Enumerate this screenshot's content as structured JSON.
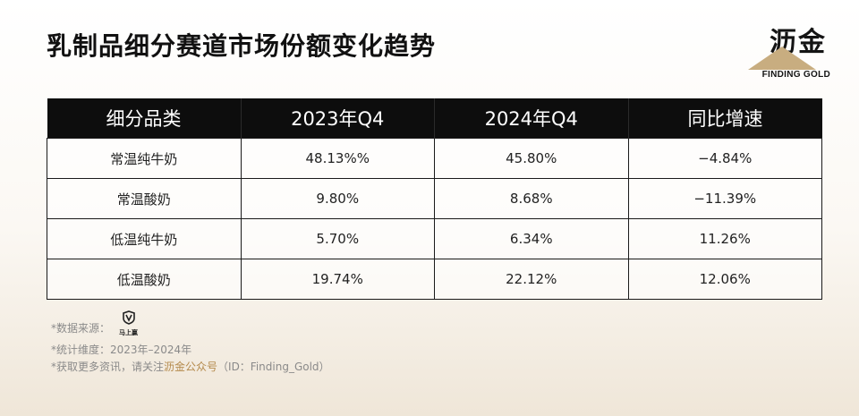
{
  "title": "乳制品细分赛道市场份额变化趋势",
  "logo": {
    "cn": "沥金",
    "en": "FINDING GOLD",
    "accent_color": "#c8ad80"
  },
  "chart_data": {
    "type": "table",
    "columns": [
      "细分品类",
      "2023年Q4",
      "2024年Q4",
      "同比增速"
    ],
    "rows": [
      [
        "常温纯牛奶",
        "48.13%%",
        "45.80%",
        "−4.84%"
      ],
      [
        "常温酸奶",
        "9.80%",
        "8.68%",
        "−11.39%"
      ],
      [
        "低温纯牛奶",
        "5.70%",
        "6.34%",
        "11.26%"
      ],
      [
        "低温酸奶",
        "19.74%",
        "22.12%",
        "12.06%"
      ]
    ]
  },
  "footnotes": {
    "source_label": "*数据来源：",
    "source_logo_text": "马上赢",
    "dimension_label": "*统计维度：",
    "dimension_value": "2023年–2024年",
    "more_prefix": "*获取更多资讯，请关注",
    "more_accent": "沥金公众号",
    "more_suffix": "（ID：Finding_Gold）"
  },
  "colors": {
    "header_bg": "#0d0d0d",
    "accent": "#b48a4c"
  }
}
